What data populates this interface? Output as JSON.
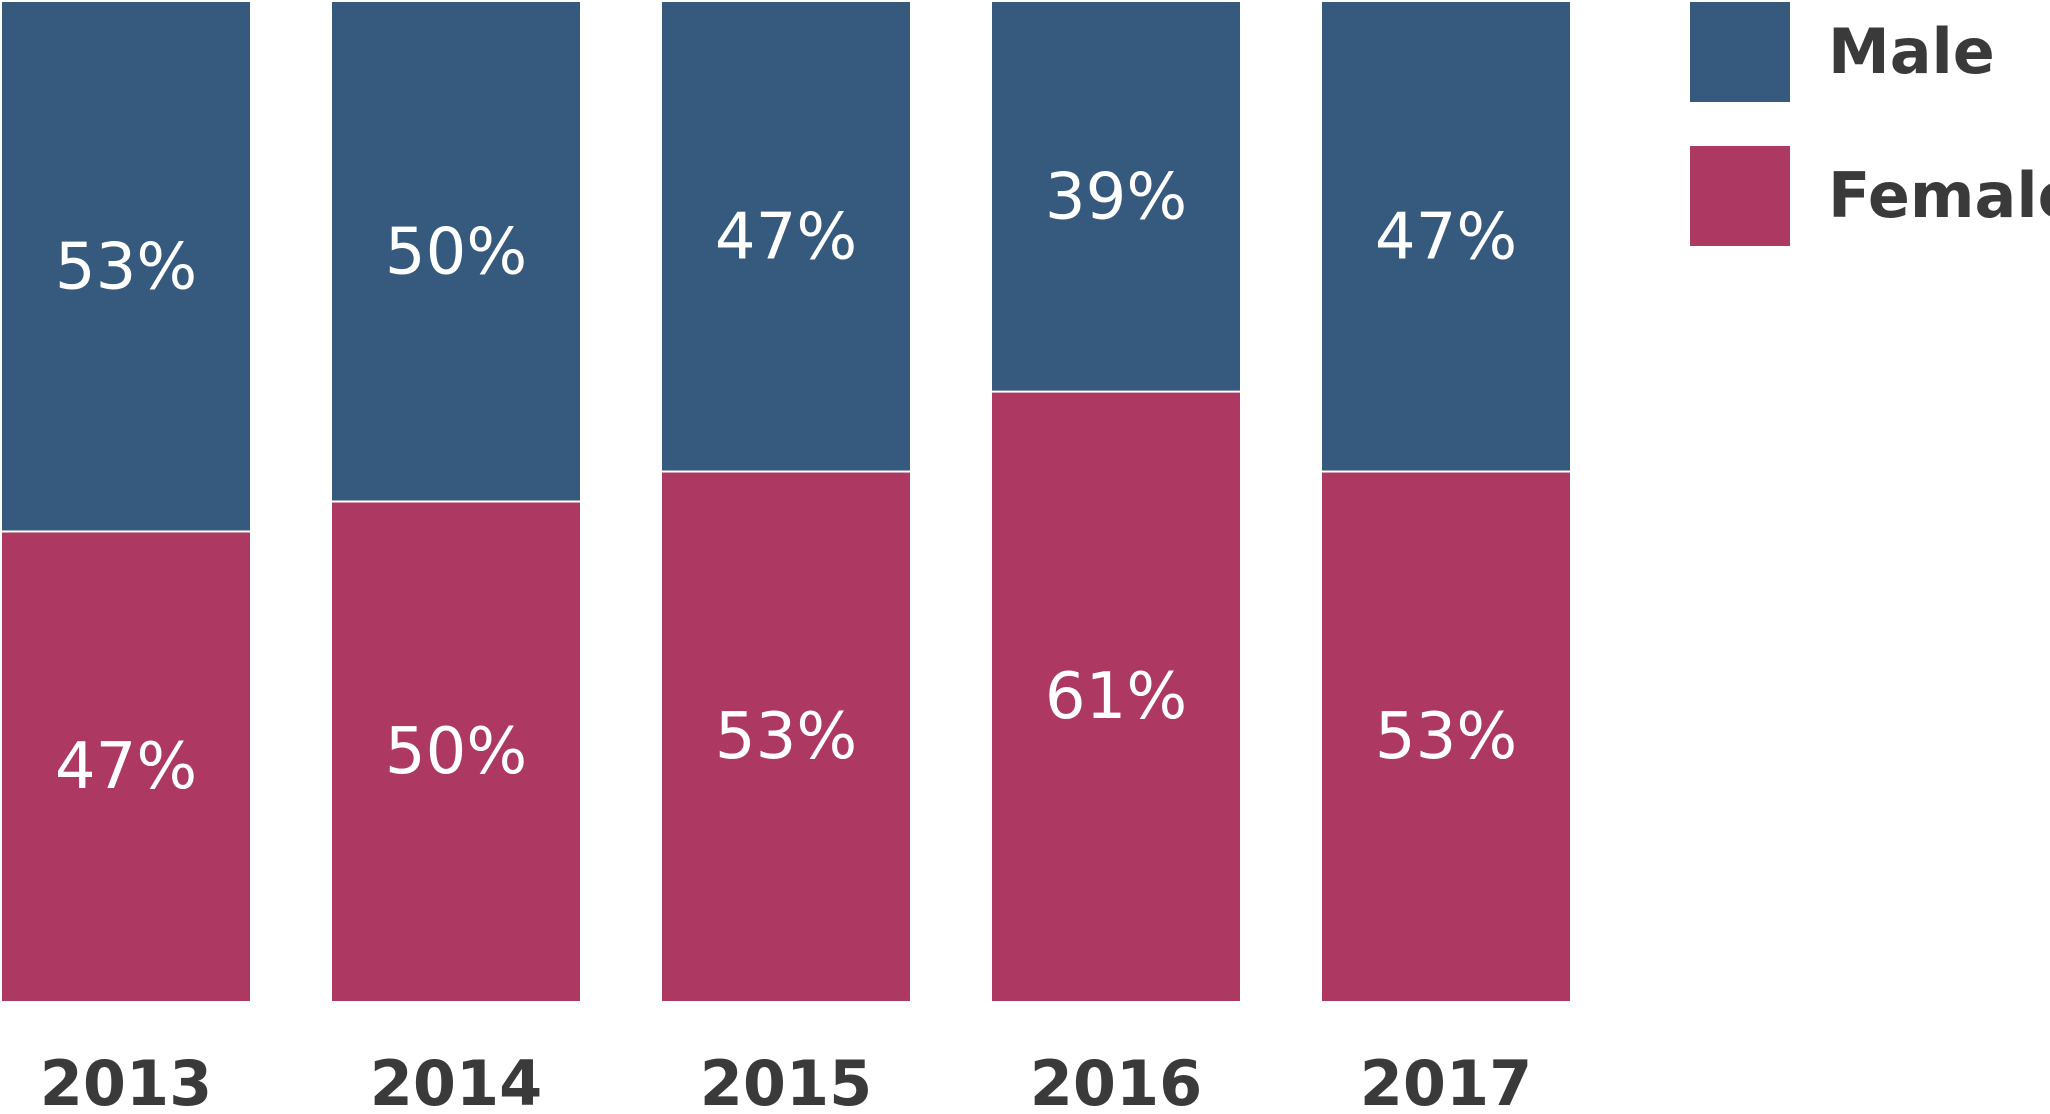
{
  "chart_data": {
    "type": "bar",
    "stacked": true,
    "categories": [
      "2013",
      "2014",
      "2015",
      "2016",
      "2017"
    ],
    "series": [
      {
        "name": "Male",
        "values": [
          53,
          50,
          47,
          39,
          47
        ],
        "labels": [
          "53%",
          "50%",
          "47%",
          "39%",
          "47%"
        ],
        "color": "#365a7d"
      },
      {
        "name": "Female",
        "values": [
          47,
          50,
          53,
          61,
          53
        ],
        "labels": [
          "47%",
          "50%",
          "53%",
          "61%",
          "53%"
        ],
        "color": "#ad3962"
      }
    ],
    "ylim": [
      0,
      100
    ],
    "grid": false,
    "legend_position": "top-right"
  }
}
